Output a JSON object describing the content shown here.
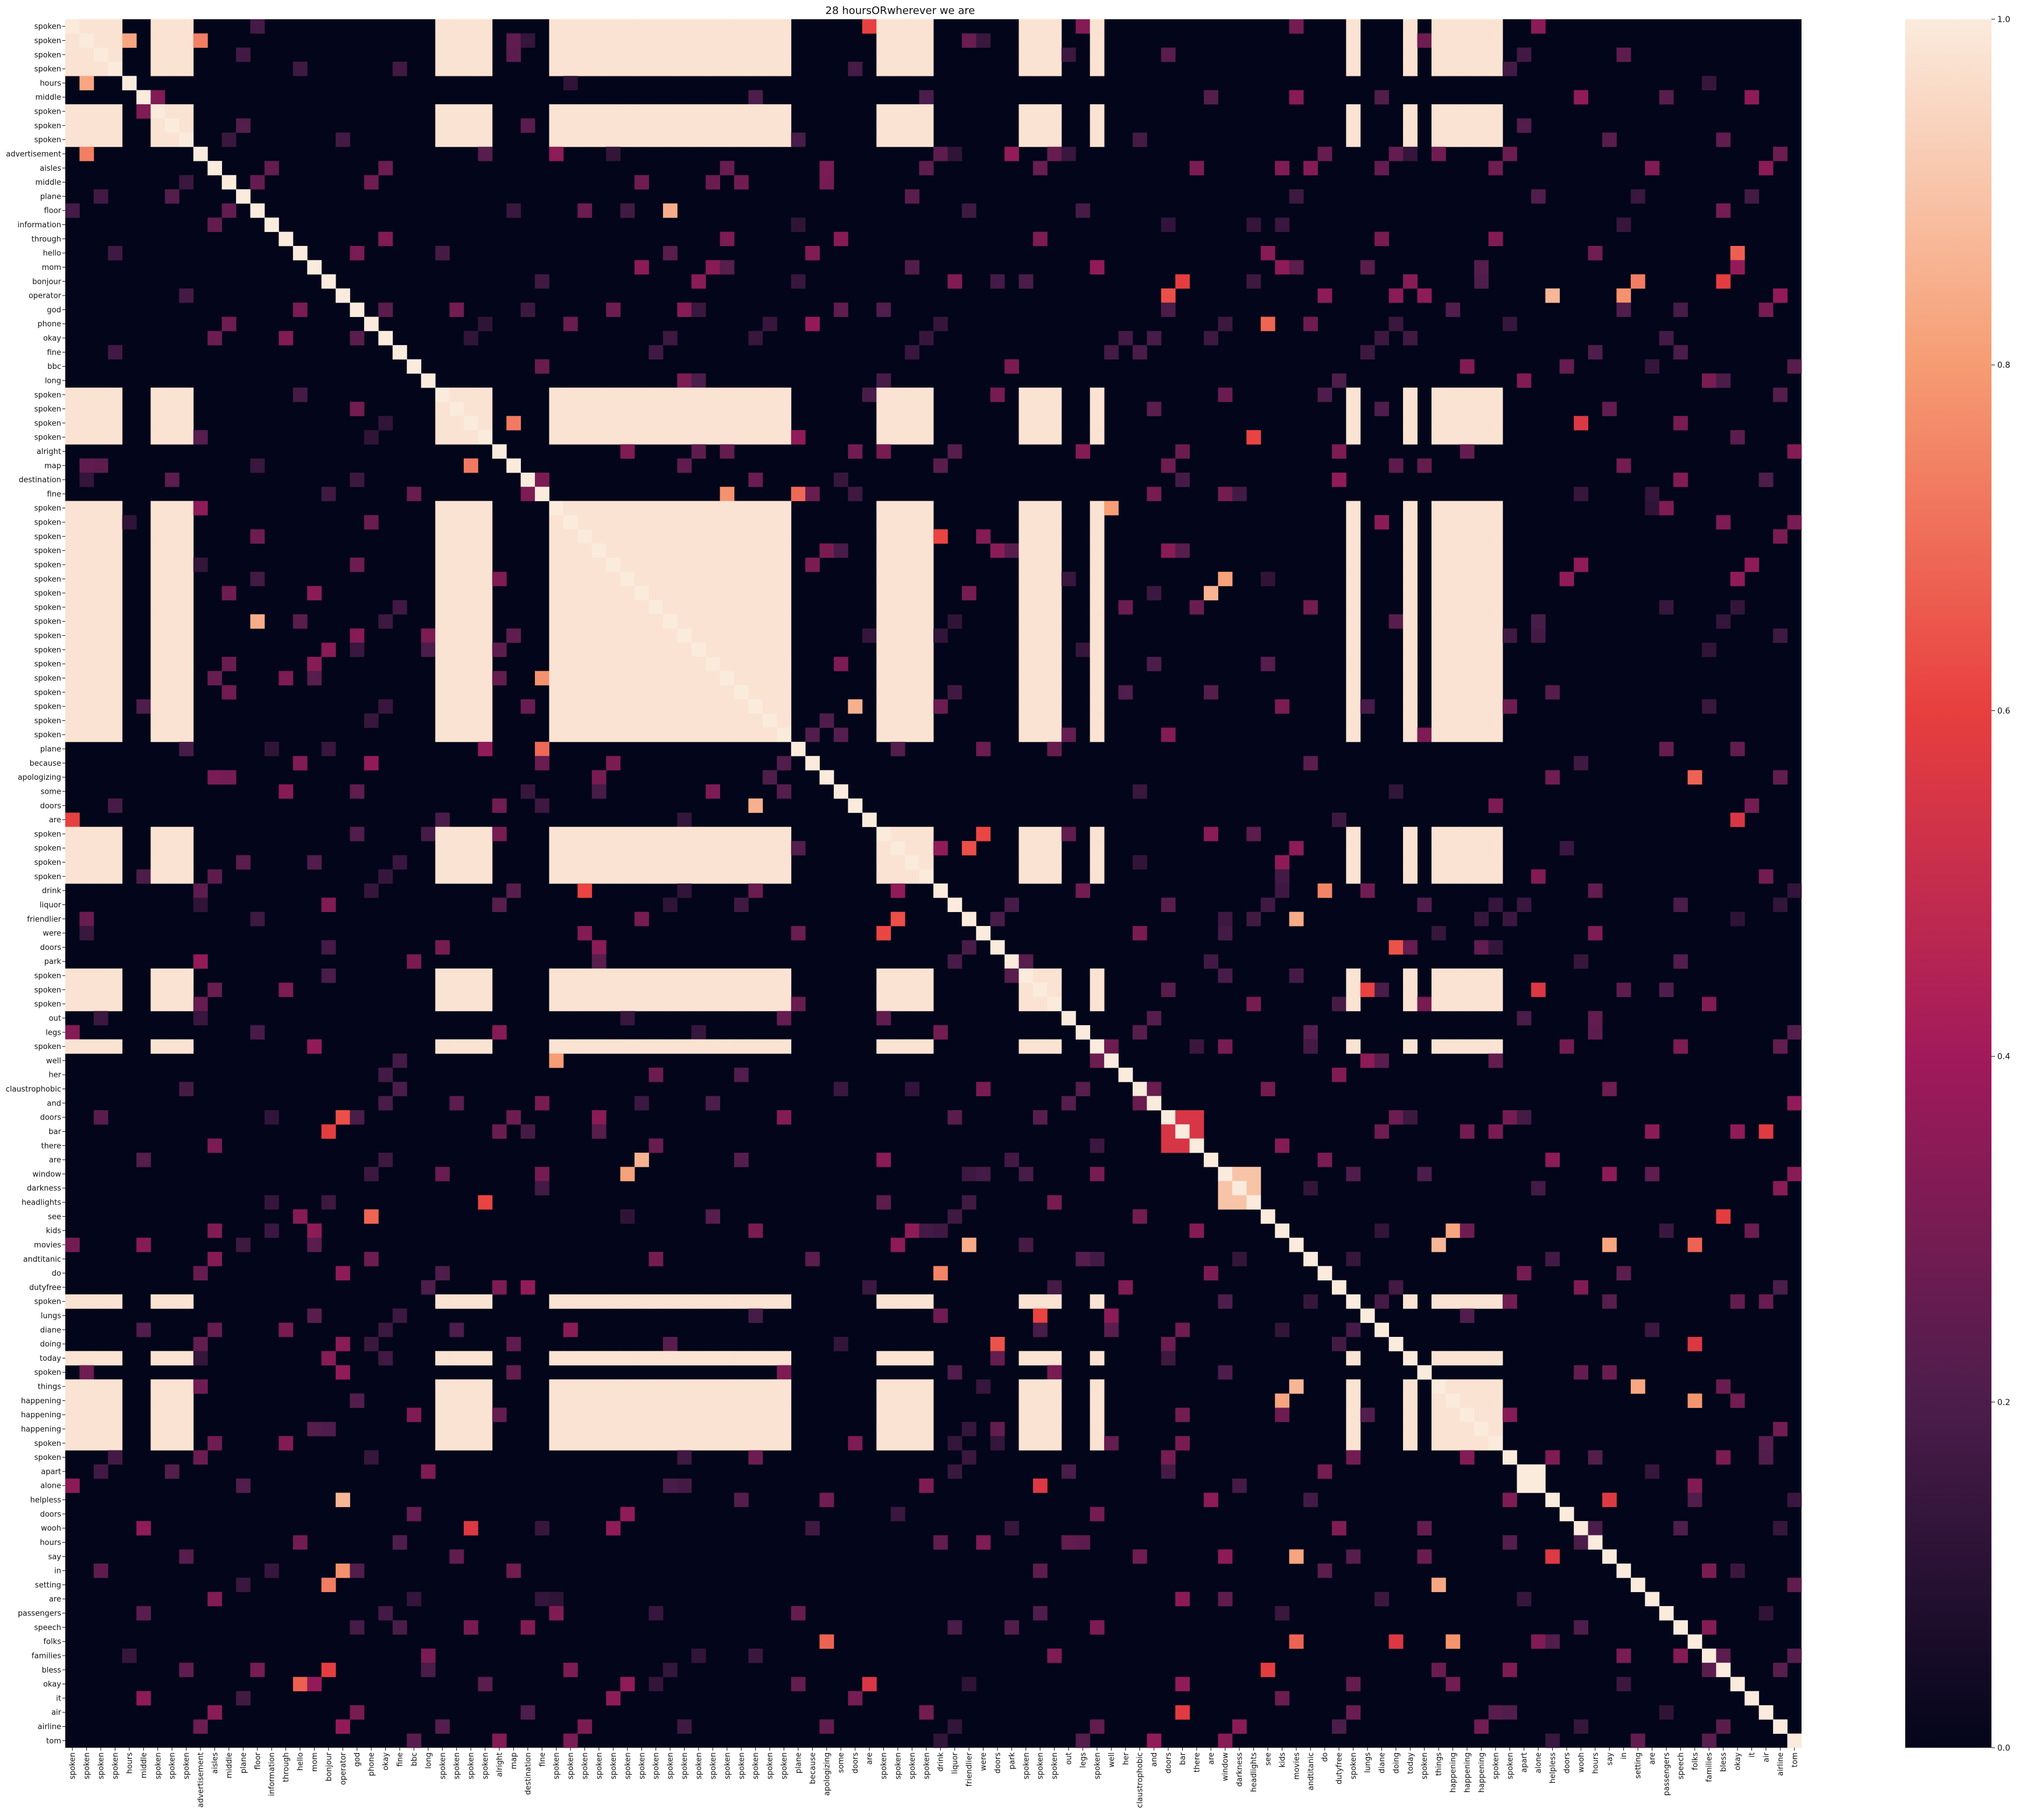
{
  "chart_data": {
    "type": "heatmap",
    "title": "28 hoursORwherever we are",
    "xlabel": "",
    "ylabel": "",
    "labels": [
      "spoken",
      "spoken",
      "spoken",
      "spoken",
      "hours",
      "middle",
      "spoken",
      "spoken",
      "spoken",
      "advertisement",
      "aisles",
      "middle",
      "plane",
      "floor",
      "information",
      "through",
      "hello",
      "mom",
      "bonjour",
      "operator",
      "god",
      "phone",
      "okay",
      "fine",
      "bbc",
      "long",
      "spoken",
      "spoken",
      "spoken",
      "spoken",
      "alright",
      "map",
      "destination",
      "fine",
      "spoken",
      "spoken",
      "spoken",
      "spoken",
      "spoken",
      "spoken",
      "spoken",
      "spoken",
      "spoken",
      "spoken",
      "spoken",
      "spoken",
      "spoken",
      "spoken",
      "spoken",
      "spoken",
      "spoken",
      "plane",
      "because",
      "apologizing",
      "some",
      "doors",
      "are",
      "spoken",
      "spoken",
      "spoken",
      "spoken",
      "drink",
      "liquor",
      "friendlier",
      "were",
      "doors",
      "park",
      "spoken",
      "spoken",
      "spoken",
      "out",
      "legs",
      "spoken",
      "well",
      "her",
      "claustrophobic",
      "and",
      "doors",
      "bar",
      "there",
      "are",
      "window",
      "darkness",
      "headlights",
      "see",
      "kids",
      "movies",
      "andtitanic",
      "do",
      "dutyfree",
      "spoken",
      "lungs",
      "diane",
      "doing",
      "today",
      "spoken",
      "things",
      "happening",
      "happening",
      "happening",
      "spoken",
      "spoken",
      "apart",
      "alone",
      "helpless",
      "doors",
      "wooh",
      "hours",
      "say",
      "in",
      "setting",
      "are",
      "passengers",
      "speech",
      "folks",
      "families",
      "bless",
      "okay",
      "it",
      "air",
      "airline",
      "tom"
    ],
    "value_range": [
      0.0,
      1.0
    ],
    "colorbar_ticks": [
      "0.0",
      "0.2",
      "0.4",
      "0.6",
      "0.8",
      "1.0"
    ],
    "colormap": [
      "#03051a",
      "#4c1d4b",
      "#a11a5b",
      "#e83f3f",
      "#f69c73",
      "#faebdd"
    ],
    "diagonal_value": 1.0,
    "speech_group_indices": [
      0,
      1,
      2,
      3,
      6,
      7,
      8,
      26,
      27,
      28,
      29,
      34,
      35,
      36,
      37,
      38,
      39,
      40,
      41,
      42,
      43,
      44,
      45,
      46,
      47,
      48,
      49,
      50,
      57,
      58,
      59,
      60,
      67,
      68,
      69,
      72,
      90,
      94,
      96,
      97,
      98,
      99,
      100
    ],
    "speech_cluster_value": 0.98,
    "notable_blocks": [
      {
        "rows": [
          77,
          79
        ],
        "cols": [
          77,
          79
        ],
        "value": 0.55
      },
      {
        "rows": [
          0,
          3
        ],
        "cols": [
          0,
          3
        ],
        "value": 0.9
      },
      {
        "rows": [
          96,
          99
        ],
        "cols": [
          96,
          99
        ],
        "value": 0.9
      },
      {
        "rows": [
          102,
          103
        ],
        "cols": [
          102,
          103
        ],
        "value": 1.0
      },
      {
        "rows": [
          81,
          83
        ],
        "cols": [
          81,
          83
        ],
        "value": 0.9
      }
    ],
    "grid": false,
    "colorbar": "right"
  }
}
